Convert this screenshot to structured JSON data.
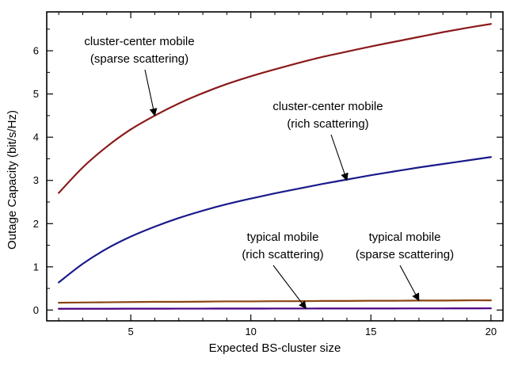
{
  "chart_data": {
    "type": "line",
    "title": "",
    "xlabel": "Expected BS-cluster size",
    "ylabel": "Outage Capacity (bit/s/Hz)",
    "xlim": [
      1.5,
      20.5
    ],
    "ylim": [
      -0.25,
      6.9
    ],
    "xticks": [
      5,
      10,
      15,
      20
    ],
    "yticks": [
      0,
      1,
      2,
      3,
      4,
      5,
      6
    ],
    "grid": false,
    "legend": "none",
    "x": [
      2,
      3,
      4,
      5,
      6,
      7,
      8,
      9,
      10,
      11,
      12,
      13,
      14,
      15,
      16,
      17,
      18,
      19,
      20
    ],
    "series": [
      {
        "color": "#8b1a1a",
        "values": [
          2.71,
          3.3,
          3.78,
          4.18,
          4.5,
          4.78,
          5.02,
          5.23,
          5.41,
          5.57,
          5.72,
          5.86,
          5.98,
          6.1,
          6.21,
          6.32,
          6.43,
          6.53,
          6.62
        ]
      },
      {
        "color": "#1a1a8b",
        "values": [
          0.64,
          1.07,
          1.42,
          1.7,
          1.93,
          2.13,
          2.3,
          2.45,
          2.58,
          2.7,
          2.81,
          2.92,
          3.02,
          3.12,
          3.21,
          3.3,
          3.38,
          3.46,
          3.54
        ]
      },
      {
        "color": "#8b4513",
        "values": [
          0.17,
          0.175,
          0.18,
          0.185,
          0.19,
          0.19,
          0.195,
          0.2,
          0.2,
          0.205,
          0.205,
          0.21,
          0.21,
          0.215,
          0.215,
          0.22,
          0.22,
          0.225,
          0.225
        ]
      },
      {
        "color": "#4b0082",
        "values": [
          0.03,
          0.03,
          0.03,
          0.032,
          0.032,
          0.033,
          0.033,
          0.034,
          0.034,
          0.035,
          0.035,
          0.036,
          0.036,
          0.037,
          0.037,
          0.038,
          0.038,
          0.039,
          0.04
        ]
      }
    ],
    "annotations": [
      {
        "lines": [
          "cluster-center mobile",
          "(sparse scattering)"
        ],
        "points_to": {
          "x": 6.0,
          "y": 4.5
        }
      },
      {
        "lines": [
          "cluster-center mobile",
          "(rich scattering)"
        ],
        "points_to": {
          "x": 14.0,
          "y": 3.0
        }
      },
      {
        "lines": [
          "typical mobile",
          "(rich scattering)"
        ],
        "points_to": {
          "x": 12.3,
          "y": 0.035
        }
      },
      {
        "lines": [
          "typical mobile",
          "(sparse scattering)"
        ],
        "points_to": {
          "x": 17.0,
          "y": 0.22
        }
      }
    ]
  }
}
